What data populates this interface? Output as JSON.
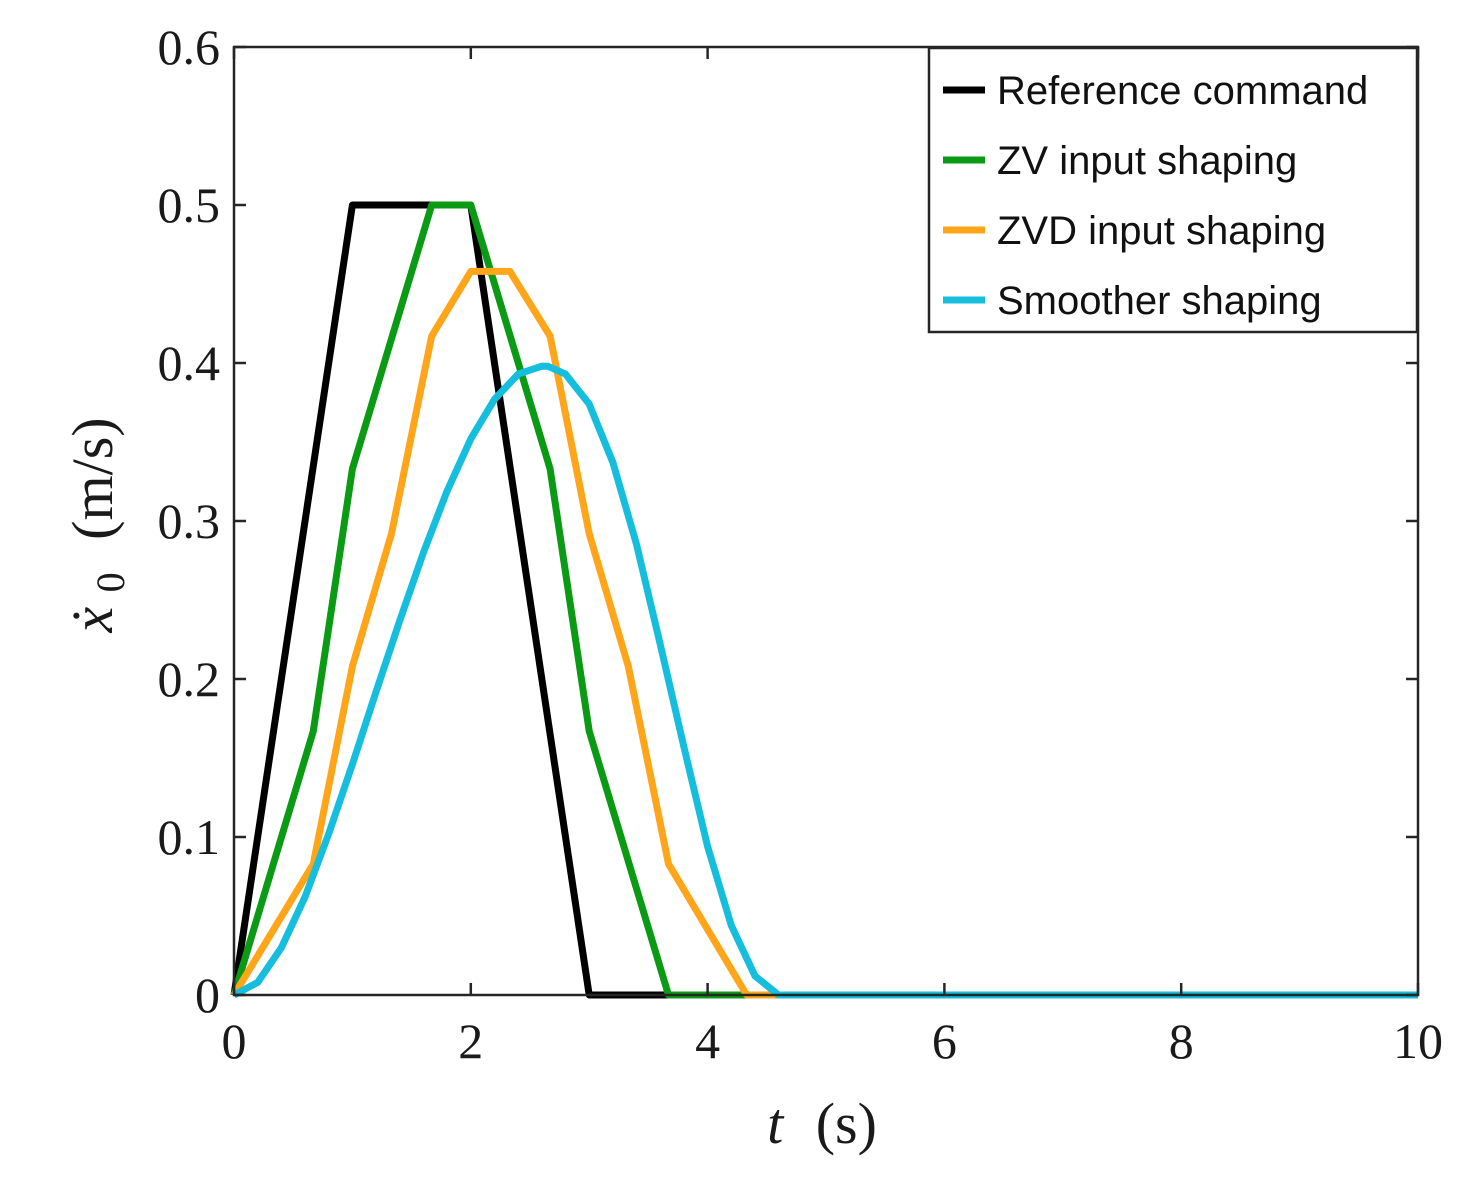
{
  "chart_data": {
    "type": "line",
    "title": "",
    "xlabel": "t (s)",
    "xlabel_parts": {
      "var": "t",
      "unit": "(s)"
    },
    "ylabel": "ẋ0 (m/s)",
    "ylabel_parts": {
      "var": "ẋ",
      "sub": "0",
      "unit": "(m/s)"
    },
    "xlim": [
      0,
      10
    ],
    "ylim": [
      0,
      0.6
    ],
    "xticks": [
      0,
      2,
      4,
      6,
      8,
      10
    ],
    "xtick_labels": [
      "0",
      "2",
      "4",
      "6",
      "8",
      "10"
    ],
    "yticks": [
      0,
      0.1,
      0.2,
      0.3,
      0.4,
      0.5,
      0.6
    ],
    "ytick_labels": [
      "0",
      "0.1",
      "0.2",
      "0.3",
      "0.4",
      "0.5",
      "0.6"
    ],
    "grid": false,
    "legend_position": "top-right",
    "series": [
      {
        "name": "Reference command",
        "color": "#000000",
        "x": [
          0,
          1.0,
          2.0,
          3.0,
          10
        ],
        "y": [
          0,
          0.5,
          0.5,
          0.0,
          0.0
        ]
      },
      {
        "name": "ZV input shaping",
        "color": "#0a9a14",
        "x": [
          0,
          0.67,
          1.0,
          1.67,
          2.0,
          2.67,
          3.0,
          3.67,
          10
        ],
        "y": [
          0,
          0.167,
          0.333,
          0.5,
          0.5,
          0.333,
          0.167,
          0.0,
          0.0
        ]
      },
      {
        "name": "ZVD input shaping",
        "color": "#ffa51a",
        "x": [
          0,
          0.67,
          1.0,
          1.33,
          1.67,
          2.0,
          2.33,
          2.67,
          3.0,
          3.33,
          3.67,
          4.33,
          10
        ],
        "y": [
          0,
          0.083,
          0.208,
          0.292,
          0.417,
          0.458,
          0.458,
          0.417,
          0.292,
          0.208,
          0.083,
          0.0,
          0.0
        ]
      },
      {
        "name": "Smoother shaping",
        "color": "#14bedc",
        "x": [
          0,
          0.2,
          0.4,
          0.6,
          0.8,
          1.0,
          1.2,
          1.4,
          1.6,
          1.8,
          2.0,
          2.2,
          2.4,
          2.6,
          2.65,
          2.8,
          3.0,
          3.2,
          3.4,
          3.6,
          3.8,
          4.0,
          4.2,
          4.4,
          4.6,
          10
        ],
        "y": [
          0,
          0.008,
          0.03,
          0.062,
          0.102,
          0.146,
          0.192,
          0.237,
          0.28,
          0.319,
          0.352,
          0.377,
          0.393,
          0.398,
          0.398,
          0.393,
          0.374,
          0.337,
          0.285,
          0.222,
          0.157,
          0.094,
          0.044,
          0.012,
          0.0,
          0.0
        ]
      }
    ]
  }
}
